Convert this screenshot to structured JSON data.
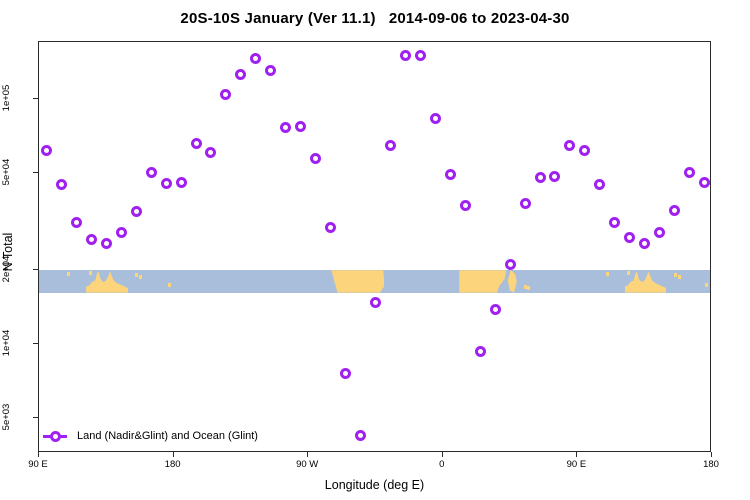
{
  "chart_data": {
    "type": "scatter",
    "title": "20S-10S January (Ver 11.1)   2014-09-06 to 2023-04-30",
    "xlabel": "Longitude (deg E)",
    "ylabel": "N Total",
    "x_scale": "linear",
    "y_scale": "log10",
    "xlim": [
      90,
      540
    ],
    "ylim": [
      3600,
      171000
    ],
    "grid": false,
    "legend_position": "bottom-left-inside",
    "legend_label": "Land (Nadir&Glint) and Ocean (Glint)",
    "marker": "open-circle",
    "marker_color": "#A020F0",
    "x_ticks": [
      {
        "value": 90,
        "label": "90 E"
      },
      {
        "value": 180,
        "label": "180"
      },
      {
        "value": 270,
        "label": "90 W"
      },
      {
        "value": 360,
        "label": "0"
      },
      {
        "value": 450,
        "label": "90 E"
      },
      {
        "value": 540,
        "label": "180"
      }
    ],
    "y_ticks": [
      {
        "value": 5000,
        "label": "5e+03"
      },
      {
        "value": 10000,
        "label": "1e+04"
      },
      {
        "value": 20000,
        "label": "2e+04"
      },
      {
        "value": 50000,
        "label": "5e+04"
      },
      {
        "value": 100000,
        "label": "1e+05"
      }
    ],
    "series": [
      {
        "name": "Land (Nadir&Glint) and Ocean (Glint)",
        "x": [
          95,
          105,
          115,
          125,
          135,
          145,
          155,
          165,
          175,
          185,
          195,
          205,
          215,
          225,
          235,
          245,
          255,
          265,
          275,
          285,
          295,
          305,
          315,
          325,
          335,
          345,
          355,
          365,
          375,
          385,
          395,
          405,
          415,
          425,
          435,
          445,
          455,
          465,
          475,
          485,
          495,
          505,
          515,
          525,
          535
        ],
        "y": [
          61400,
          44600,
          31200,
          26800,
          25600,
          28400,
          34600,
          49900,
          45400,
          45800,
          66100,
          60200,
          104000,
          126000,
          146000,
          131000,
          76200,
          76900,
          56900,
          30000,
          7550,
          4250,
          14800,
          64300,
          150000,
          151000,
          83600,
          49000,
          36600,
          9350,
          13800,
          21200,
          37300,
          47600,
          48100,
          64900,
          61900,
          44600,
          31200,
          27100,
          25600,
          28600,
          35200,
          50300,
          45800
        ]
      }
    ],
    "map_band": {
      "role": "land-ocean strip map of latitude band 20S-10S",
      "value_top": 20000,
      "value_bottom": 16200,
      "ocean_color": "#A9BEDB",
      "land_color": "#FBD47B",
      "land_segments": [
        {
          "shape": "australia-newguinea",
          "lon_start": 121.5,
          "lon_end": 149.5
        },
        {
          "shape": "south-america",
          "lon_start": 284,
          "lon_end": 321
        },
        {
          "shape": "africa",
          "lon_start": 371,
          "lon_end": 402.5
        },
        {
          "shape": "madagascar",
          "lon_start": 403.5,
          "lon_end": 409.5
        },
        {
          "shape": "australia-newguinea",
          "lon_start": 481.5,
          "lon_end": 509.5
        }
      ],
      "island_specks": [
        {
          "lon": 110,
          "frac": 0.08
        },
        {
          "lon": 124.5,
          "frac": 0.05
        },
        {
          "lon": 155.5,
          "frac": 0.15
        },
        {
          "lon": 158,
          "frac": 0.25
        },
        {
          "lon": 177,
          "frac": 0.7
        },
        {
          "lon": 415,
          "frac": 0.8
        },
        {
          "lon": 417,
          "frac": 0.85
        },
        {
          "lon": 470,
          "frac": 0.08
        },
        {
          "lon": 484.5,
          "frac": 0.05
        },
        {
          "lon": 515.5,
          "frac": 0.15
        },
        {
          "lon": 518,
          "frac": 0.25
        },
        {
          "lon": 536.5,
          "frac": 0.7
        }
      ]
    }
  },
  "layout_colors": {
    "frame": "#2b2b2b",
    "text": "#000000",
    "background": "#ffffff"
  }
}
